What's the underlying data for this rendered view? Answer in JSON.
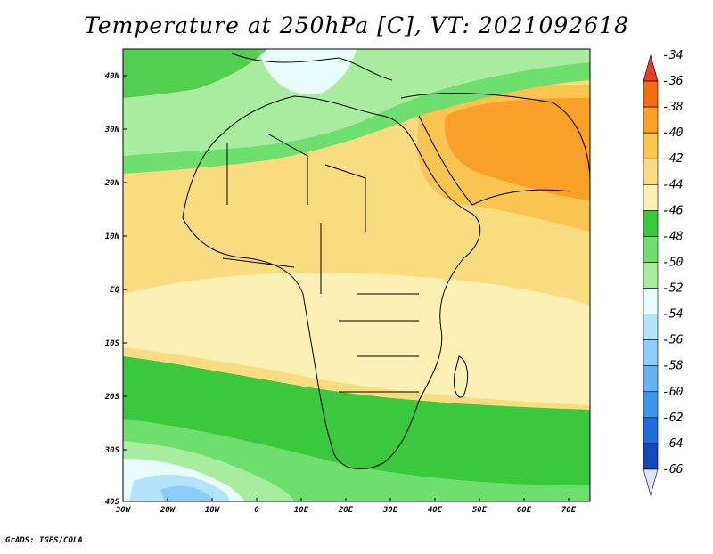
{
  "title": "Temperature at 250hPa [C], VT: 2021092618",
  "credit": "GrADS: IGES/COLA",
  "map": {
    "lon_range": [
      -30,
      75
    ],
    "lat_range": [
      -40,
      45
    ],
    "lon_ticks": [
      "30W",
      "20W",
      "10W",
      "0",
      "10E",
      "20E",
      "30E",
      "40E",
      "50E",
      "60E",
      "70E"
    ],
    "lat_ticks": [
      "40N",
      "30N",
      "20N",
      "10N",
      "EQ",
      "10S",
      "20S",
      "30S",
      "40S"
    ]
  },
  "colorbar": {
    "labels": [
      "-34",
      "-36",
      "-38",
      "-40",
      "-42",
      "-44",
      "-46",
      "-48",
      "-50",
      "-52",
      "-54",
      "-56",
      "-58",
      "-60",
      "-62",
      "-64",
      "-66"
    ],
    "colors": [
      "#e8401c",
      "#f66a14",
      "#f8a028",
      "#fac450",
      "#fadc80",
      "#fcf0b4",
      "#3cc83c",
      "#6ede6e",
      "#a8eca0",
      "#e8fcfc",
      "#b4e4fc",
      "#8cccfa",
      "#64b4f4",
      "#3c96ea",
      "#1e6ee0",
      "#1448be",
      "#0a1c7a"
    ]
  }
}
